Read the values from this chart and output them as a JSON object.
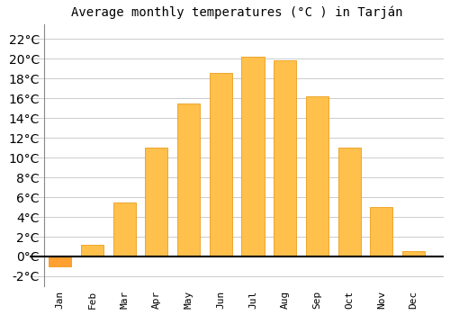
{
  "title": "Average monthly temperatures (°C ) in Tarján",
  "months": [
    "Jan",
    "Feb",
    "Mar",
    "Apr",
    "May",
    "Jun",
    "Jul",
    "Aug",
    "Sep",
    "Oct",
    "Nov",
    "Dec"
  ],
  "values": [
    -1.0,
    1.2,
    5.5,
    11.0,
    15.5,
    18.6,
    20.2,
    19.8,
    16.2,
    11.0,
    5.0,
    0.5
  ],
  "bar_color_pos": "#FFC04C",
  "bar_color_neg": "#FFA030",
  "bar_edge_color": "#E89000",
  "ylim": [
    -3,
    23.5
  ],
  "yticks": [
    -2,
    0,
    2,
    4,
    6,
    8,
    10,
    12,
    14,
    16,
    18,
    20,
    22
  ],
  "grid_color": "#cccccc",
  "bg_color": "#ffffff",
  "title_fontsize": 10,
  "tick_fontsize": 8
}
